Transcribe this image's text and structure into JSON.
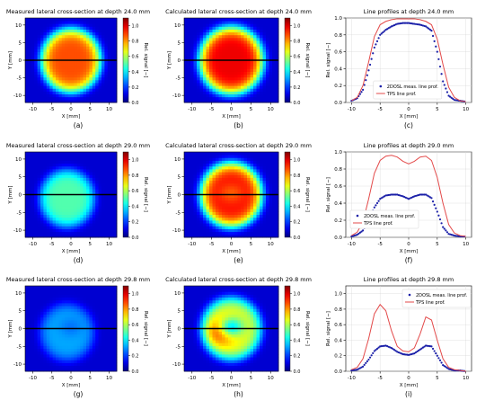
{
  "panels": [
    {
      "kind": "heatmap",
      "title": "Measured lateral cross-section at depth 24.0 mm",
      "caption": "(a)",
      "xlabel": "X [mm]",
      "ylabel": "Y [mm]",
      "cbar_label": "Rel. signal [−]",
      "peak": 0.88,
      "cx": 0,
      "cy": 0,
      "rx": 8.2,
      "ry": 9.5,
      "hole": 0,
      "flat": true
    },
    {
      "kind": "heatmap",
      "title": "Calculated lateral cross-section at depth 24.0 mm",
      "caption": "(b)",
      "xlabel": "X [mm]",
      "ylabel": "Y [mm]",
      "cbar_label": "Rel. signal [−]",
      "peak": 0.98,
      "cx": 0,
      "cy": 0,
      "rx": 8.5,
      "ry": 10,
      "hole": 0,
      "flat": true
    },
    {
      "kind": "line",
      "title": "Line profiles at depth 24.0 mm",
      "caption": "(c)",
      "xlabel": "X [mm]",
      "ylabel": "Rel. signal [−]",
      "legend": [
        "2DOSL meas. line prof.",
        "TPS line prof."
      ],
      "legend_pos": "bottom-center",
      "ylim": [
        0,
        1.0
      ],
      "yticks": [
        0.0,
        0.2,
        0.4,
        0.6,
        0.8,
        1.0
      ],
      "profile": "c"
    },
    {
      "kind": "heatmap",
      "title": "Measured lateral cross-section at depth 29.0 mm",
      "caption": "(d)",
      "xlabel": "X [mm]",
      "ylabel": "Y [mm]",
      "cbar_label": "Rel. signal [−]",
      "peak": 0.5,
      "cx": -1,
      "cy": -1,
      "rx": 7.5,
      "ry": 8.5,
      "hole": 0,
      "flat": true
    },
    {
      "kind": "heatmap",
      "title": "Calculated lateral cross-section at depth 29.0 mm",
      "caption": "(e)",
      "xlabel": "X [mm]",
      "ylabel": "Y [mm]",
      "cbar_label": "Rel. signal [−]",
      "peak": 0.95,
      "cx": 0,
      "cy": 0,
      "rx": 8.2,
      "ry": 9.5,
      "hole": 0.1,
      "flat": true
    },
    {
      "kind": "line",
      "title": "Line profiles at depth 29.0 mm",
      "caption": "(f)",
      "xlabel": "X [mm]",
      "ylabel": "Rel. signal [−]",
      "legend": [
        "2DOSL meas. line prof.",
        "TPS line prof."
      ],
      "legend_pos": "bottom-left",
      "ylim": [
        0,
        1.0
      ],
      "yticks": [
        0.0,
        0.2,
        0.4,
        0.6,
        0.8,
        1.0
      ],
      "profile": "f"
    },
    {
      "kind": "heatmap",
      "title": "Measured lateral cross-section at depth 29.8 mm",
      "caption": "(g)",
      "xlabel": "X [mm]",
      "ylabel": "Y [mm]",
      "cbar_label": "Rel. signal [−]",
      "peak": 0.32,
      "cx": -1,
      "cy": -1,
      "rx": 7.5,
      "ry": 8.5,
      "hole": 0.25,
      "flat": true
    },
    {
      "kind": "heatmap",
      "title": "Calculated lateral cross-section at depth 29.8 mm",
      "caption": "(h)",
      "xlabel": "X [mm]",
      "ylabel": "Y [mm]",
      "cbar_label": "Rel. signal [−]",
      "peak": 0.85,
      "cx": 0,
      "cy": 0,
      "rx": 8,
      "ry": 9.2,
      "hole": 0.55,
      "flat": false
    },
    {
      "kind": "line",
      "title": "Line profiles at depth 29.8 mm",
      "caption": "(i)",
      "xlabel": "X [mm]",
      "ylabel": "Rel. signal [−]",
      "legend": [
        "2DOSL meas. line prof.",
        "TPS line prof."
      ],
      "legend_pos": "top-right",
      "ylim": [
        0,
        1.1
      ],
      "yticks": [
        0.0,
        0.2,
        0.4,
        0.6,
        0.8,
        1.0
      ],
      "profile": "i"
    }
  ],
  "heat_axes": {
    "xticks": [
      -10,
      -5,
      0,
      5,
      10
    ],
    "yticks": [
      -10,
      -5,
      0,
      5,
      10
    ],
    "xlim": [
      -12,
      12
    ],
    "ylim": [
      -12,
      12
    ],
    "cbar_ticks": [
      0.0,
      0.2,
      0.4,
      0.6,
      0.8,
      1.0
    ],
    "cbar_range": [
      0,
      1.1
    ]
  },
  "line_axes": {
    "xticks": [
      -10,
      -5,
      0,
      5,
      10
    ],
    "xlim": [
      -11,
      11
    ]
  },
  "colors": {
    "meas": "#1a1fa8",
    "tps": "#e34a4a",
    "line": "#000000"
  },
  "chart_data": [
    {
      "type": "heatmap",
      "panel": "a",
      "title": "Measured lateral cross-section at depth 24.0 mm",
      "xlabel": "X [mm]",
      "ylabel": "Y [mm]",
      "x_range": [
        -12,
        12
      ],
      "y_range": [
        -12,
        12
      ],
      "colorbar_label": "Rel. signal [−]",
      "colorbar_range": [
        0,
        1.1
      ]
    },
    {
      "type": "heatmap",
      "panel": "b",
      "title": "Calculated lateral cross-section at depth 24.0 mm",
      "xlabel": "X [mm]",
      "ylabel": "Y [mm]",
      "x_range": [
        -12,
        12
      ],
      "y_range": [
        -12,
        12
      ],
      "colorbar_label": "Rel. signal [−]",
      "colorbar_range": [
        0,
        1.1
      ]
    },
    {
      "type": "line",
      "panel": "c",
      "title": "Line profiles at depth 24.0 mm",
      "xlabel": "X [mm]",
      "ylabel": "Rel. signal [−]",
      "xlim": [
        -11,
        11
      ],
      "ylim": [
        0,
        1.0
      ],
      "series": [
        {
          "name": "2DOSL meas. line prof.",
          "x": [
            -10,
            -9,
            -8,
            -7,
            -6,
            -5,
            -4,
            -3,
            -2,
            -1,
            0,
            1,
            2,
            3,
            4,
            5,
            6,
            7,
            8,
            9,
            10
          ],
          "y": [
            0.02,
            0.05,
            0.15,
            0.38,
            0.65,
            0.8,
            0.86,
            0.9,
            0.93,
            0.94,
            0.94,
            0.93,
            0.92,
            0.9,
            0.85,
            0.6,
            0.25,
            0.08,
            0.03,
            0.02,
            0.01
          ]
        },
        {
          "name": "TPS line prof.",
          "x": [
            -10,
            -9,
            -8,
            -7,
            -6,
            -5,
            -4,
            -3,
            -2,
            -1,
            0,
            1,
            2,
            3,
            4,
            5,
            6,
            7,
            8,
            9,
            10
          ],
          "y": [
            0.02,
            0.06,
            0.2,
            0.48,
            0.78,
            0.92,
            0.96,
            0.98,
            0.99,
            0.99,
            0.99,
            0.99,
            0.98,
            0.96,
            0.92,
            0.75,
            0.45,
            0.18,
            0.06,
            0.02,
            0.01
          ]
        }
      ]
    },
    {
      "type": "heatmap",
      "panel": "d",
      "title": "Measured lateral cross-section at depth 29.0 mm",
      "xlabel": "X [mm]",
      "ylabel": "Y [mm]",
      "x_range": [
        -12,
        12
      ],
      "y_range": [
        -12,
        12
      ],
      "colorbar_label": "Rel. signal [−]",
      "colorbar_range": [
        0,
        1.1
      ]
    },
    {
      "type": "heatmap",
      "panel": "e",
      "title": "Calculated lateral cross-section at depth 29.0 mm",
      "xlabel": "X [mm]",
      "ylabel": "Y [mm]",
      "x_range": [
        -12,
        12
      ],
      "y_range": [
        -12,
        12
      ],
      "colorbar_label": "Rel. signal [−]",
      "colorbar_range": [
        0,
        1.1
      ]
    },
    {
      "type": "line",
      "panel": "f",
      "title": "Line profiles at depth 29.0 mm",
      "xlabel": "X [mm]",
      "ylabel": "Rel. signal [−]",
      "xlim": [
        -11,
        11
      ],
      "ylim": [
        0,
        1.0
      ],
      "series": [
        {
          "name": "2DOSL meas. line prof.",
          "x": [
            -10,
            -9,
            -8,
            -7,
            -6,
            -5,
            -4,
            -3,
            -2,
            -1,
            0,
            1,
            2,
            3,
            4,
            5,
            6,
            7,
            8,
            9,
            10
          ],
          "y": [
            0.01,
            0.03,
            0.08,
            0.2,
            0.35,
            0.45,
            0.49,
            0.5,
            0.5,
            0.48,
            0.45,
            0.48,
            0.5,
            0.5,
            0.46,
            0.3,
            0.12,
            0.04,
            0.02,
            0.01,
            0.01
          ]
        },
        {
          "name": "TPS line prof.",
          "x": [
            -10,
            -9,
            -8,
            -7,
            -6,
            -5,
            -4,
            -3,
            -2,
            -1,
            0,
            1,
            2,
            3,
            4,
            5,
            6,
            7,
            8,
            9,
            10
          ],
          "y": [
            0.02,
            0.06,
            0.18,
            0.45,
            0.75,
            0.9,
            0.95,
            0.96,
            0.94,
            0.89,
            0.86,
            0.89,
            0.94,
            0.95,
            0.9,
            0.7,
            0.4,
            0.15,
            0.05,
            0.02,
            0.01
          ]
        }
      ]
    },
    {
      "type": "heatmap",
      "panel": "g",
      "title": "Measured lateral cross-section at depth 29.8 mm",
      "xlabel": "X [mm]",
      "ylabel": "Y [mm]",
      "x_range": [
        -12,
        12
      ],
      "y_range": [
        -12,
        12
      ],
      "colorbar_label": "Rel. signal [−]",
      "colorbar_range": [
        0,
        1.1
      ]
    },
    {
      "type": "heatmap",
      "panel": "h",
      "title": "Calculated lateral cross-section at depth 29.8 mm",
      "xlabel": "X [mm]",
      "ylabel": "Y [mm]",
      "x_range": [
        -12,
        12
      ],
      "y_range": [
        -12,
        12
      ],
      "colorbar_label": "Rel. signal [−]",
      "colorbar_range": [
        0,
        1.1
      ]
    },
    {
      "type": "line",
      "panel": "i",
      "title": "Line profiles at depth 29.8 mm",
      "xlabel": "X [mm]",
      "ylabel": "Rel. signal [−]",
      "xlim": [
        -11,
        11
      ],
      "ylim": [
        0,
        1.1
      ],
      "series": [
        {
          "name": "2DOSL meas. line prof.",
          "x": [
            -10,
            -9,
            -8,
            -7,
            -6,
            -5,
            -4,
            -3,
            -2,
            -1,
            0,
            1,
            2,
            3,
            4,
            5,
            6,
            7,
            8,
            9,
            10
          ],
          "y": [
            0.01,
            0.02,
            0.06,
            0.15,
            0.26,
            0.32,
            0.33,
            0.3,
            0.25,
            0.22,
            0.21,
            0.23,
            0.28,
            0.33,
            0.32,
            0.2,
            0.08,
            0.03,
            0.01,
            0.01,
            0.0
          ]
        },
        {
          "name": "TPS line prof.",
          "x": [
            -10,
            -9,
            -8,
            -7,
            -6,
            -5,
            -4,
            -3,
            -2,
            -1,
            0,
            1,
            2,
            3,
            4,
            5,
            6,
            7,
            8,
            9,
            10
          ],
          "y": [
            0.02,
            0.05,
            0.16,
            0.42,
            0.74,
            0.86,
            0.78,
            0.52,
            0.32,
            0.26,
            0.25,
            0.3,
            0.48,
            0.7,
            0.66,
            0.4,
            0.16,
            0.05,
            0.02,
            0.01,
            0.0
          ]
        }
      ]
    }
  ]
}
